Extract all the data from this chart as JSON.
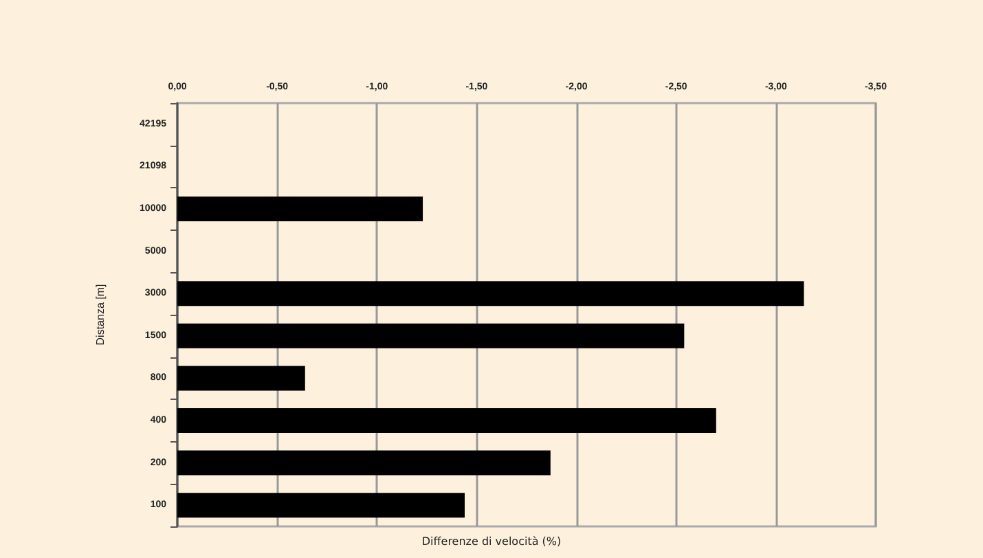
{
  "chart_data": {
    "type": "bar",
    "orientation": "horizontal",
    "xlabel": "Differenze di velocità (%)",
    "ylabel": "Distanza [m]",
    "categories": [
      "42195",
      "21098",
      "10000",
      "5000",
      "3000",
      "1500",
      "800",
      "400",
      "200",
      "100"
    ],
    "values": [
      null,
      null,
      -1.23,
      null,
      -3.14,
      -2.54,
      -0.64,
      -2.7,
      -1.87,
      -1.44
    ],
    "color": "#000000",
    "xlim": [
      0,
      -3.5
    ],
    "xticks": [
      {
        "value": 0,
        "label": "0,00"
      },
      {
        "value": -0.5,
        "label": "-0,50"
      },
      {
        "value": -1,
        "label": "-1,00"
      },
      {
        "value": -1.5,
        "label": "-1,50"
      },
      {
        "value": -2,
        "label": "-2,00"
      },
      {
        "value": -2.5,
        "label": "-2,50"
      },
      {
        "value": -3,
        "label": "-3,00"
      },
      {
        "value": -3.5,
        "label": "-3,50"
      }
    ],
    "grid": "x"
  }
}
